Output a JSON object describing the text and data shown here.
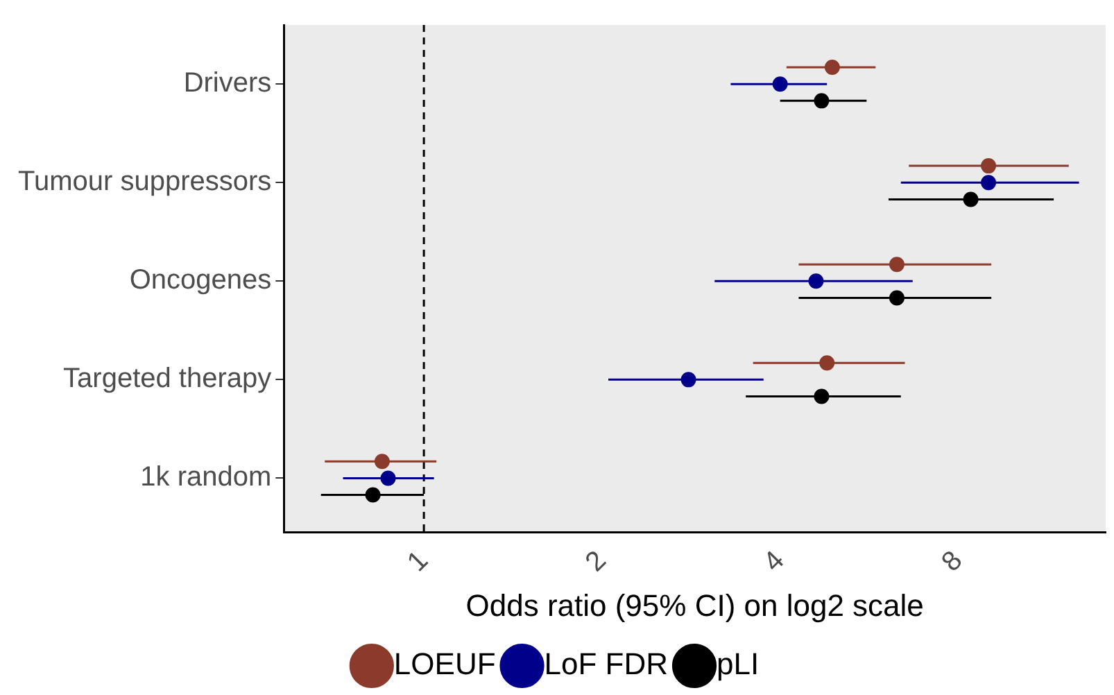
{
  "chart_data": {
    "type": "scatter",
    "orientation": "horizontal",
    "xlabel": "Odds ratio (95% CI) on log2 scale",
    "categories": [
      "Drivers",
      "Tumour suppressors",
      "Oncogenes",
      "Targeted therapy",
      "1k random"
    ],
    "series": [
      {
        "name": "LOEUF",
        "color": "#8b3a2b",
        "values": [
          4.9,
          9.0,
          6.3,
          4.8,
          0.85
        ],
        "errors": [
          [
            4.1,
            5.8
          ],
          [
            6.6,
            12.3
          ],
          [
            4.3,
            9.1
          ],
          [
            3.6,
            6.5
          ],
          [
            0.68,
            1.05
          ]
        ]
      },
      {
        "name": "LoF FDR",
        "color": "#00008b",
        "values": [
          4.0,
          9.0,
          4.6,
          2.8,
          0.87
        ],
        "errors": [
          [
            3.3,
            4.8
          ],
          [
            6.4,
            12.8
          ],
          [
            3.1,
            6.7
          ],
          [
            2.05,
            3.75
          ],
          [
            0.73,
            1.04
          ]
        ]
      },
      {
        "name": "pLI",
        "color": "#000000",
        "values": [
          4.7,
          8.4,
          6.3,
          4.7,
          0.82
        ],
        "errors": [
          [
            4.0,
            5.6
          ],
          [
            6.1,
            11.6
          ],
          [
            4.3,
            9.1
          ],
          [
            3.5,
            6.4
          ],
          [
            0.67,
            1.0
          ]
        ]
      }
    ],
    "log": "x",
    "xlim": [
      0.58,
      14.2
    ],
    "xticks": [
      1,
      2,
      4,
      8
    ],
    "ref_lines": [
      {
        "axis": "x",
        "value": 1,
        "color": "#000000",
        "line_style": "dashed"
      }
    ],
    "grid": false,
    "legend": "bottom",
    "marker": "circle"
  }
}
